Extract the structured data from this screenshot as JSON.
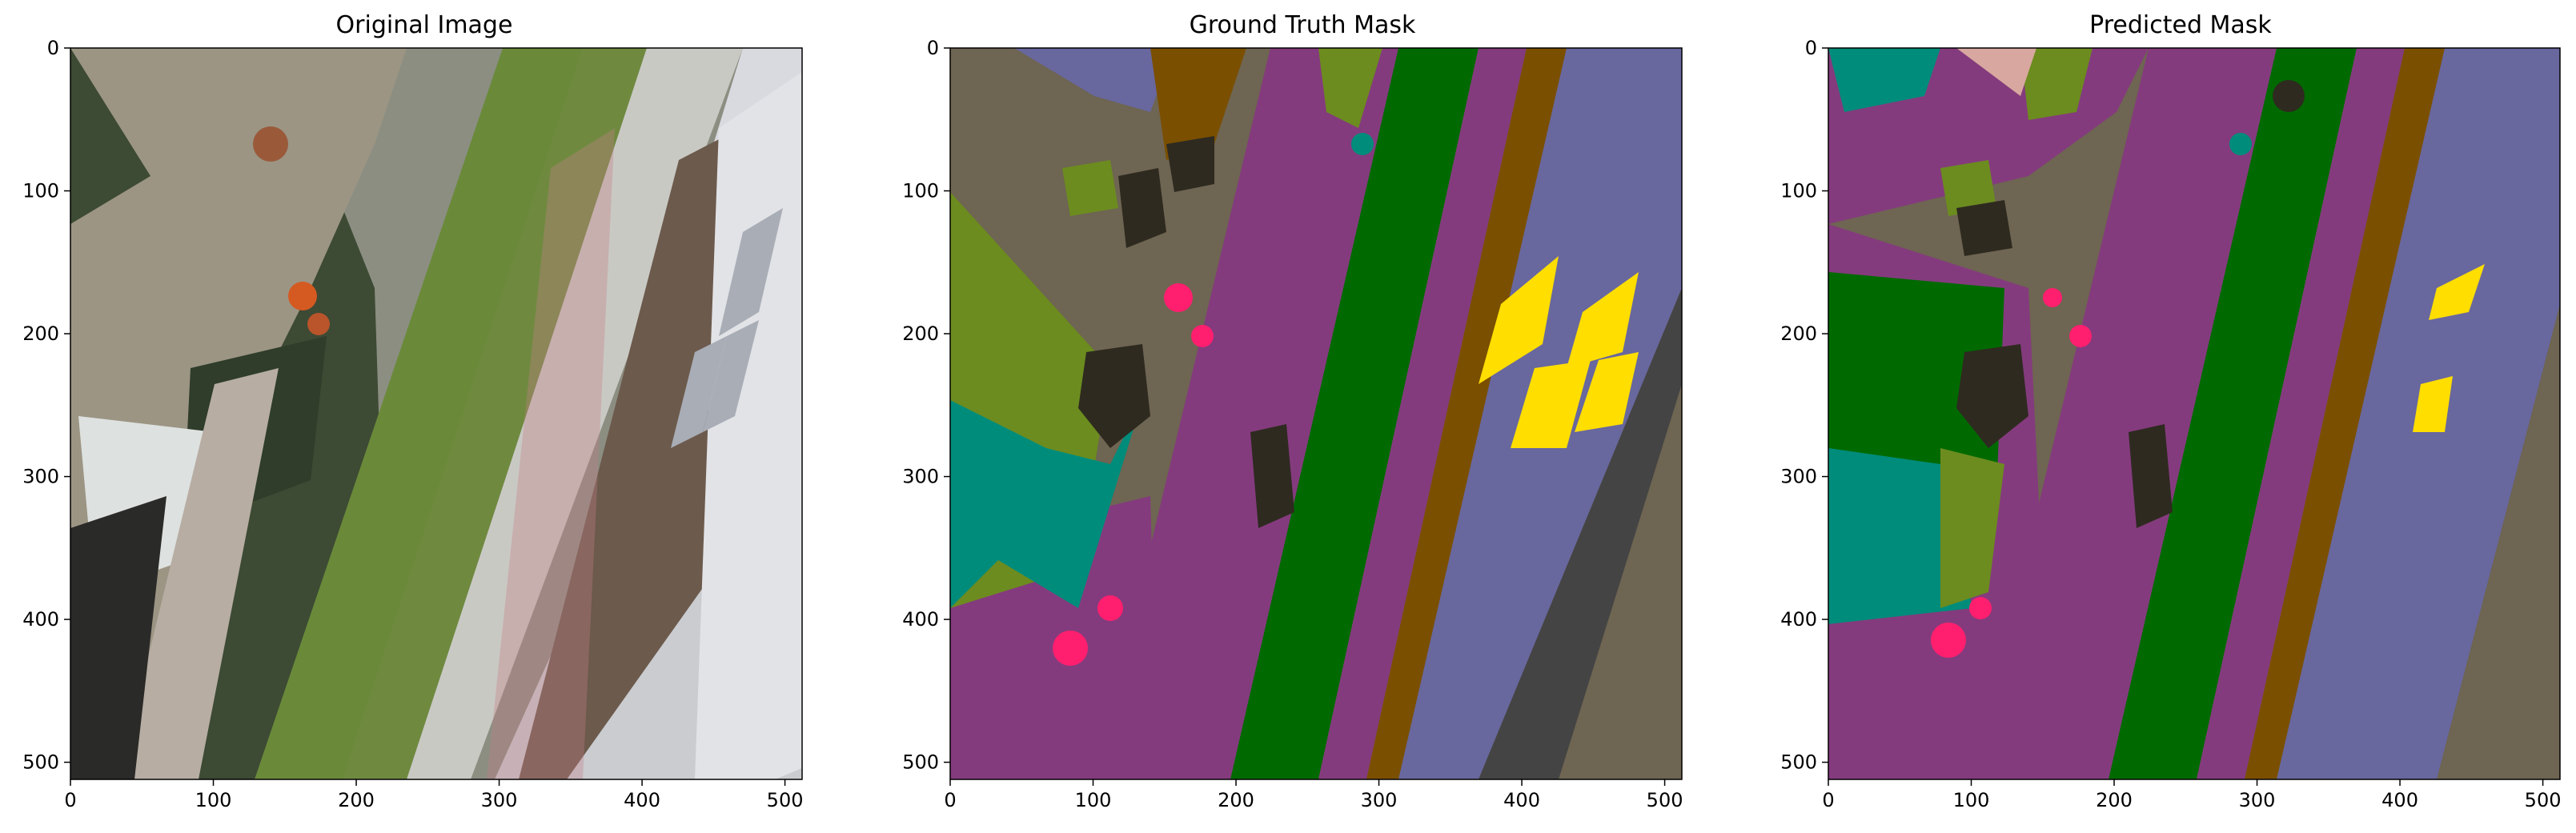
{
  "figure": {
    "panels": [
      {
        "title": "Original Image"
      },
      {
        "title": "Ground Truth Mask"
      },
      {
        "title": "Predicted Mask"
      }
    ],
    "axes": {
      "x_ticks": [
        0,
        100,
        200,
        300,
        400,
        500
      ],
      "y_ticks": [
        0,
        100,
        200,
        300,
        400,
        500
      ],
      "x_range": [
        0,
        512
      ],
      "y_range": [
        0,
        512
      ]
    },
    "colors": {
      "stone_pavement": "#6e6552",
      "grass": "#006a00",
      "vegetation": "#6c8c1f",
      "path": "#843b7d",
      "roof": "#68679e",
      "window": "#ffde00",
      "person": "#ff1f6e",
      "rocks": "#2e2a20",
      "dirt": "#7b4f00",
      "flag": "#008c7b",
      "wall": "#444444"
    }
  }
}
